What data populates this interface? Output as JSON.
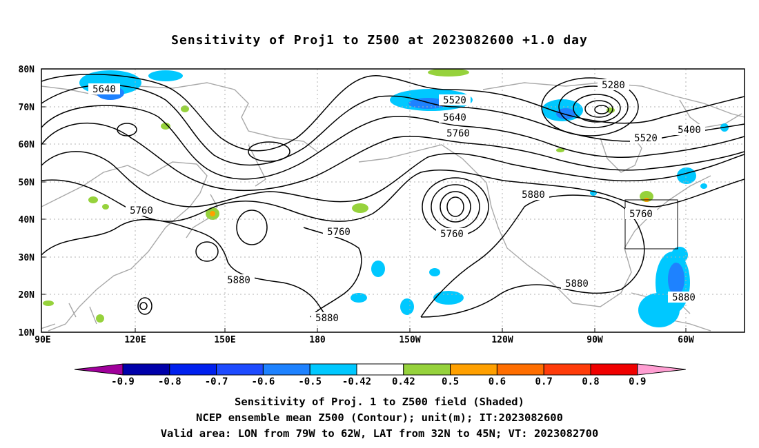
{
  "title": "Sensitivity of Proj1 to Z500 at 2023082600 +1.0 day",
  "axes": {
    "lat_labels": [
      "80N",
      "70N",
      "60N",
      "50N",
      "40N",
      "30N",
      "20N",
      "10N"
    ],
    "lon_labels": [
      "90E",
      "120E",
      "150E",
      "180",
      "150W",
      "120W",
      "90W",
      "60W"
    ]
  },
  "contour_labels": [
    {
      "text": "5640"
    },
    {
      "text": "5520"
    },
    {
      "text": "5280"
    },
    {
      "text": "5640"
    },
    {
      "text": "5760"
    },
    {
      "text": "5400"
    },
    {
      "text": "5520"
    },
    {
      "text": "5760"
    },
    {
      "text": "5880"
    },
    {
      "text": "5760"
    },
    {
      "text": "5760"
    },
    {
      "text": "5760"
    },
    {
      "text": "5880"
    },
    {
      "text": "5880"
    },
    {
      "text": "5880"
    },
    {
      "text": "5880"
    }
  ],
  "colorbar": {
    "labels": [
      "-0.9",
      "-0.8",
      "-0.7",
      "-0.6",
      "-0.5",
      "-0.42",
      "0.42",
      "0.5",
      "0.6",
      "0.7",
      "0.8",
      "0.9"
    ],
    "colors": [
      "#a0009b",
      "#0000aa",
      "#0020ee",
      "#1e4bff",
      "#1e82ff",
      "#00c8ff",
      "#ffffff",
      "#96d23c",
      "#ffa000",
      "#ff6e00",
      "#ff3c0a",
      "#f00000",
      "#ff9ed2"
    ]
  },
  "captions": {
    "line1": "Sensitivity of Proj. 1 to Z500 field (Shaded)",
    "line2": "NCEP ensemble mean Z500 (Contour); unit(m); IT:2023082600",
    "line3": "Valid area: LON from 79W to 62W, LAT from 32N to 45N; VT: 2023082700"
  }
}
